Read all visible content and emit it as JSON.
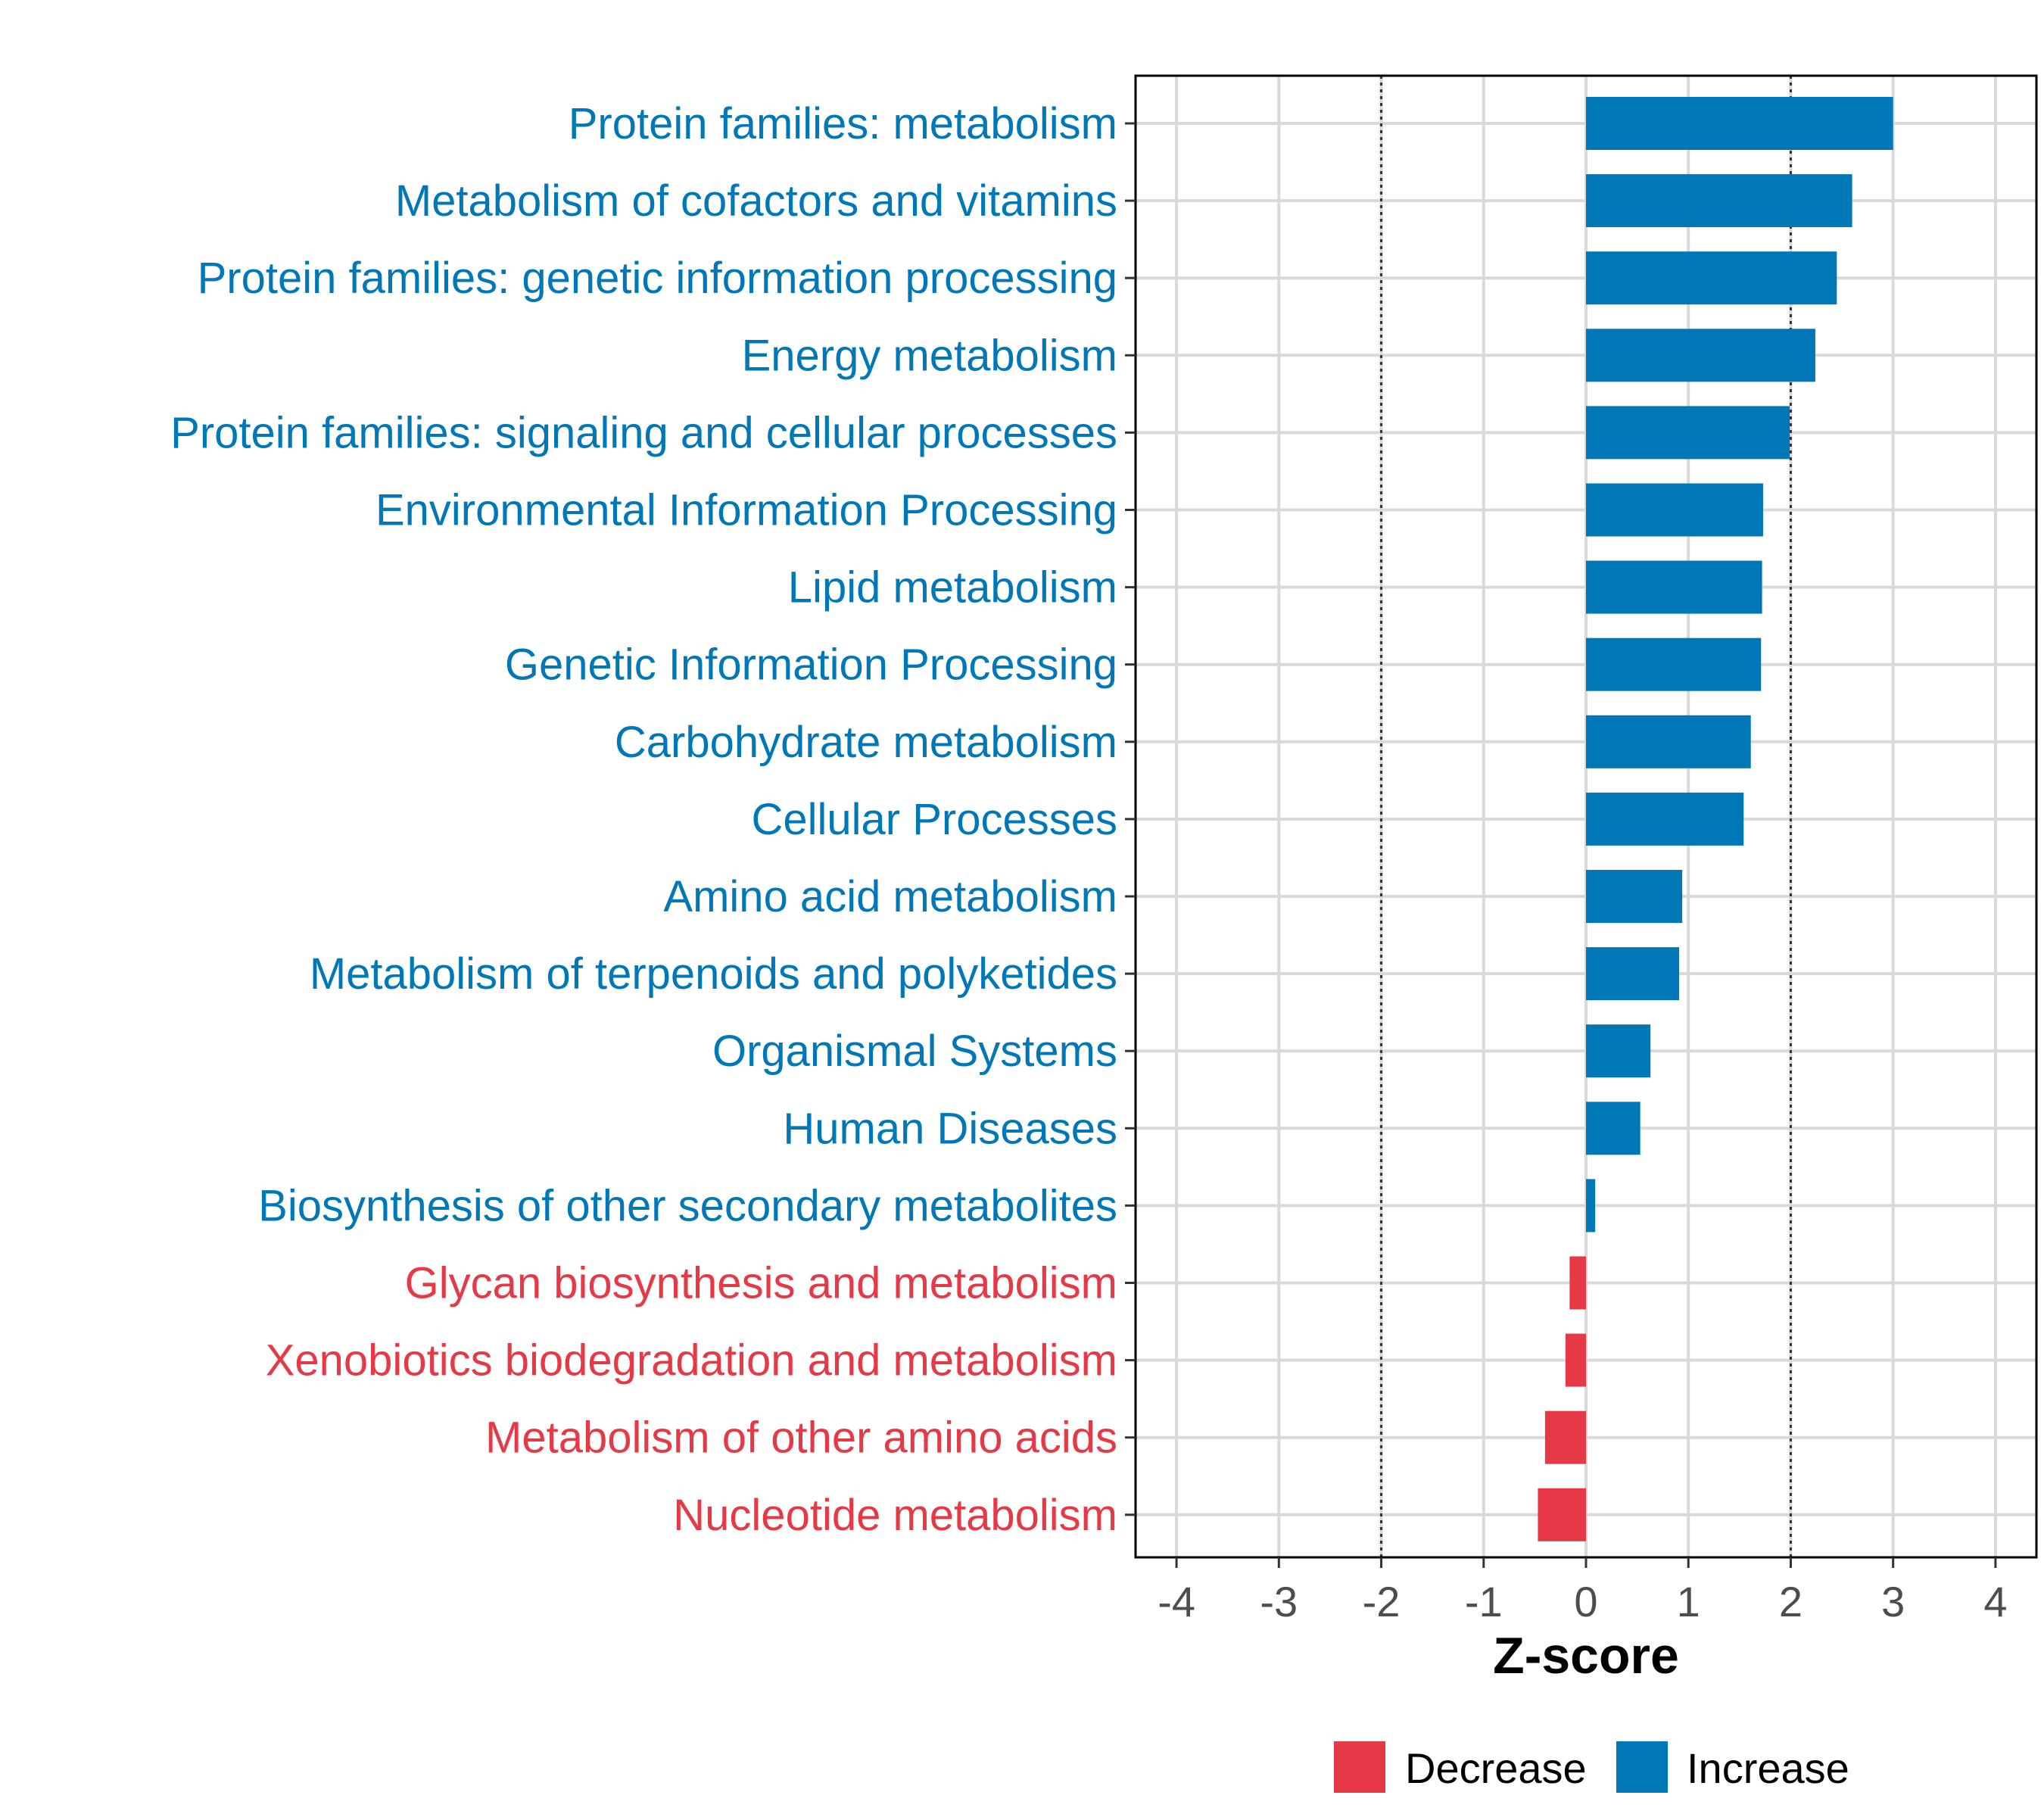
{
  "chart_data": {
    "type": "bar",
    "orientation": "horizontal",
    "title": "",
    "xlabel": "Z-score",
    "ylabel": "",
    "xlim": [
      -4.4,
      4.4
    ],
    "xticks": [
      -4,
      -3,
      -2,
      -1,
      0,
      1,
      2,
      3,
      4
    ],
    "xtick_labels": [
      "-4",
      "-3",
      "-2",
      "-1",
      "0",
      "1",
      "2",
      "3",
      "4"
    ],
    "reference_lines": [
      -2,
      2
    ],
    "grid": true,
    "colors": {
      "Decrease": "#e63946",
      "Increase": "#0077b6"
    },
    "categories": [
      "Protein families: metabolism",
      "Metabolism of cofactors and vitamins",
      "Protein families: genetic information processing",
      "Energy metabolism",
      "Protein families: signaling and cellular processes",
      "Environmental Information Processing",
      "Lipid metabolism",
      "Genetic Information Processing",
      "Carbohydrate metabolism",
      "Cellular Processes",
      "Amino acid metabolism",
      "Metabolism of terpenoids and polyketides",
      "Organismal Systems",
      "Human Diseases",
      "Biosynthesis of other secondary metabolites",
      "Glycan biosynthesis and metabolism",
      "Xenobiotics biodegradation and metabolism",
      "Metabolism of other amino acids",
      "Nucleotide metabolism"
    ],
    "values": [
      3.0,
      2.6,
      2.45,
      2.24,
      1.99,
      1.73,
      1.72,
      1.71,
      1.61,
      1.54,
      0.94,
      0.91,
      0.63,
      0.53,
      0.09,
      -0.16,
      -0.2,
      -0.4,
      -0.47
    ],
    "groups": [
      "Increase",
      "Increase",
      "Increase",
      "Increase",
      "Increase",
      "Increase",
      "Increase",
      "Increase",
      "Increase",
      "Increase",
      "Increase",
      "Increase",
      "Increase",
      "Increase",
      "Increase",
      "Decrease",
      "Decrease",
      "Decrease",
      "Decrease"
    ],
    "legend": {
      "position": "bottom",
      "entries": [
        "Decrease",
        "Increase"
      ]
    }
  }
}
